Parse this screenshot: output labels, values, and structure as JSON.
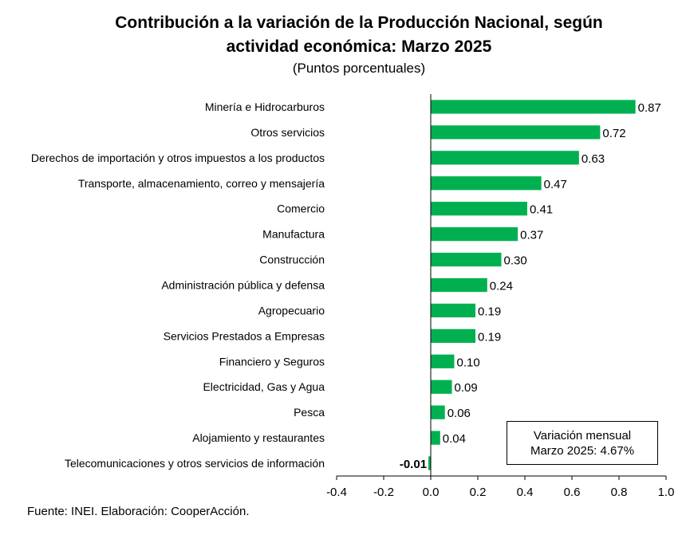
{
  "title_line1": "Contribución a la variación de la Producción Nacional, según",
  "title_line2": "actividad económica: Marzo 2025",
  "subtitle": "(Puntos porcentuales)",
  "source": "Fuente: INEI. Elaboración: CooperAcción.",
  "note": {
    "line1": "Variación mensual",
    "line2": "Marzo 2025: 4.67%"
  },
  "colors": {
    "bar": "#00b050",
    "axis": "#000000"
  },
  "chart_data": {
    "type": "bar",
    "orientation": "horizontal",
    "title": "Contribución a la variación de la Producción Nacional, según actividad económica: Marzo 2025",
    "subtitle": "(Puntos porcentuales)",
    "categories": [
      "Minería e Hidrocarburos",
      "Otros servicios",
      "Derechos de importación y otros impuestos a los productos",
      "Transporte, almacenamiento, correo y mensajería",
      "Comercio",
      "Manufactura",
      "Construcción",
      "Administración pública y defensa",
      "Agropecuario",
      "Servicios Prestados a Empresas",
      "Financiero y Seguros",
      "Electricidad, Gas y Agua",
      "Pesca",
      "Alojamiento y restaurantes",
      "Telecomunicaciones y otros servicios de información"
    ],
    "values": [
      0.87,
      0.72,
      0.63,
      0.47,
      0.41,
      0.37,
      0.3,
      0.24,
      0.19,
      0.19,
      0.1,
      0.09,
      0.06,
      0.04,
      -0.01
    ],
    "value_labels": [
      "0.87",
      "0.72",
      "0.63",
      "0.47",
      "0.41",
      "0.37",
      "0.30",
      "0.24",
      "0.19",
      "0.19",
      "0.10",
      "0.09",
      "0.06",
      "0.04",
      "-0.01"
    ],
    "xlim": [
      -0.4,
      1.0
    ],
    "xticks": [
      -0.4,
      -0.2,
      0.0,
      0.2,
      0.4,
      0.6,
      0.8,
      1.0
    ],
    "xtick_labels": [
      "-0.4",
      "-0.2",
      "0.0",
      "0.2",
      "0.4",
      "0.6",
      "0.8",
      "1.0"
    ],
    "grid": false,
    "legend": "none"
  }
}
